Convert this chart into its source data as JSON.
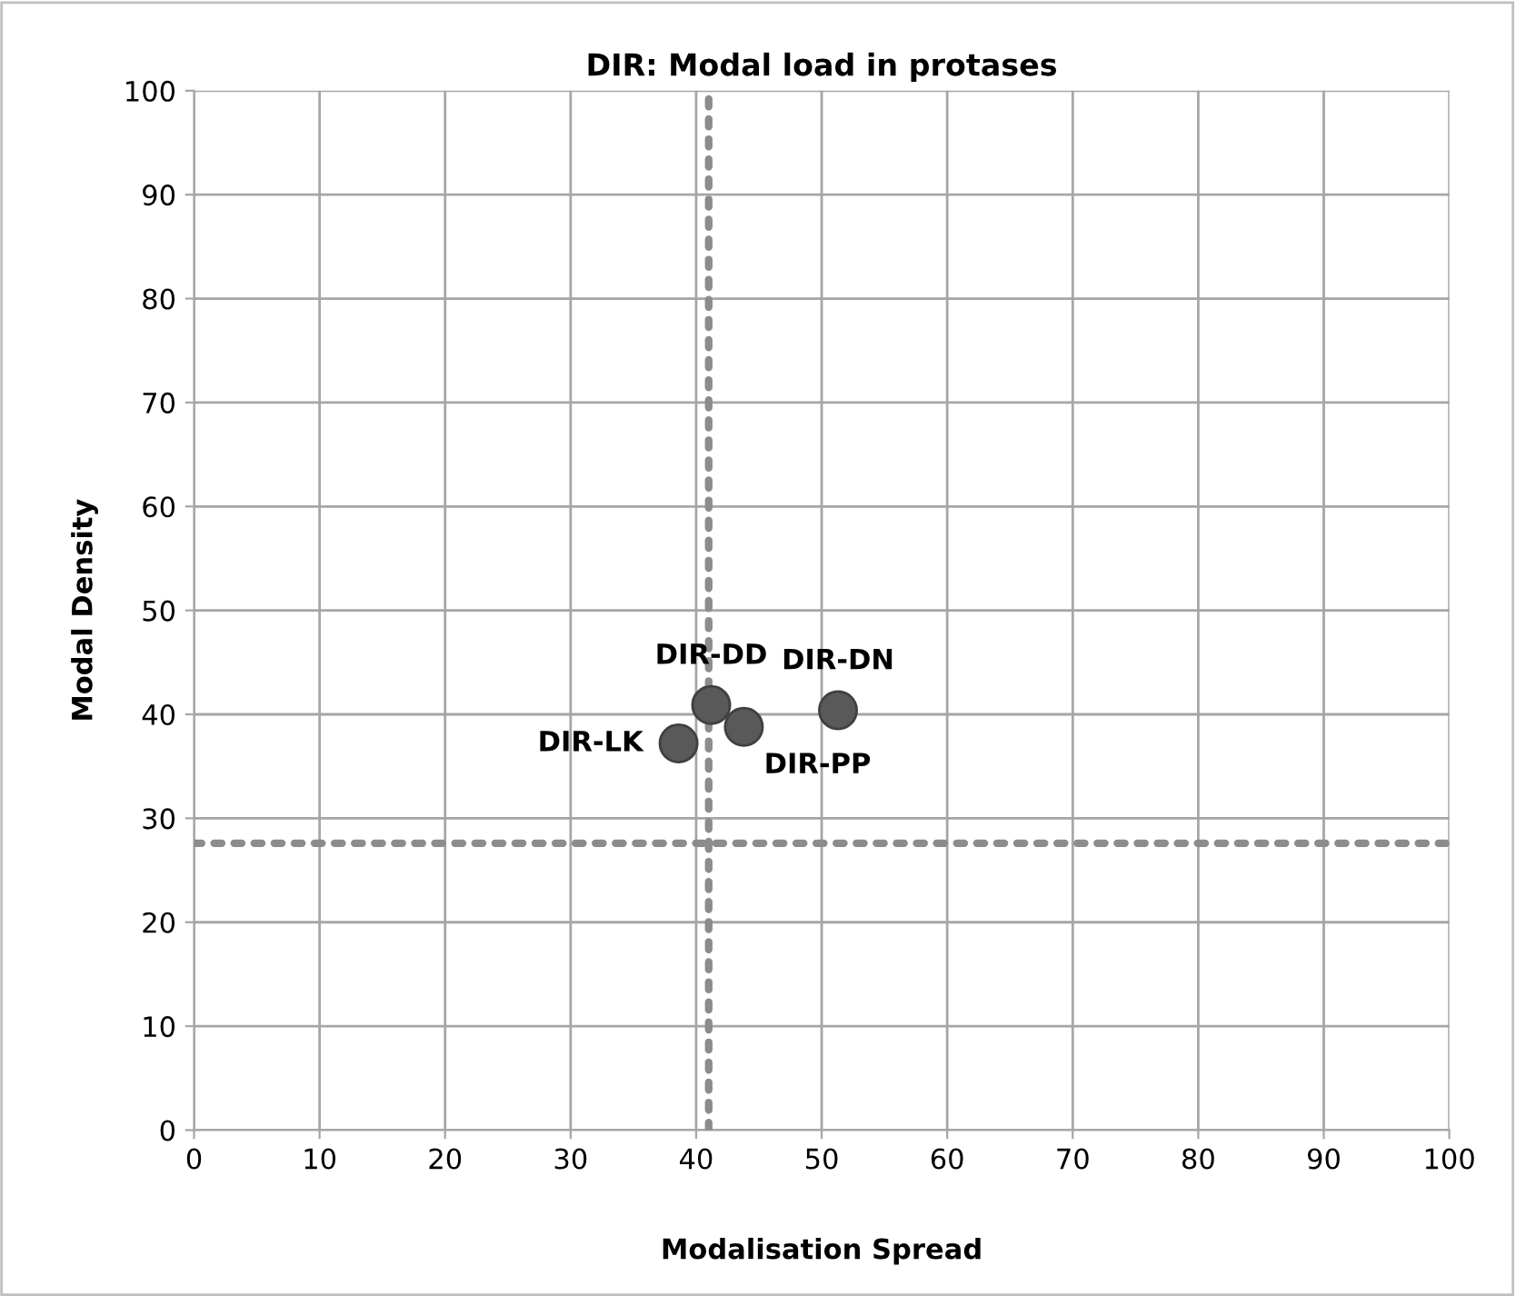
{
  "chart_data": {
    "type": "scatter",
    "title": "DIR: Modal load in protases",
    "xlabel": "Modalisation Spread",
    "ylabel": "Modal Density",
    "x": [
      41.2,
      51.3,
      38.6,
      43.8
    ],
    "series": [
      {
        "color": "#595959",
        "values": [
          40.9,
          40.4,
          37.2,
          38.8
        ]
      }
    ],
    "annotations": [
      {
        "text": "DIR-DD",
        "x": 41.2,
        "y": 40.9
      },
      {
        "text": "DIR-DN",
        "x": 51.3,
        "y": 40.4
      },
      {
        "text": "DIR-LK",
        "x": 38.6,
        "y": 37.2
      },
      {
        "text": "DIR-PP",
        "x": 43.8,
        "y": 38.8
      }
    ],
    "ref_lines": [
      {
        "axis": "x",
        "value": 41,
        "color": "#8c8c8c",
        "line_style": "dotted"
      },
      {
        "axis": "y",
        "value": 27.6,
        "color": "#8c8c8c",
        "line_style": "dotted"
      }
    ],
    "xlim": [
      0,
      100
    ],
    "ylim": [
      0,
      100
    ],
    "xticks": [
      0,
      10,
      20,
      30,
      40,
      50,
      60,
      70,
      80,
      90,
      100
    ],
    "yticks": [
      0,
      10,
      20,
      30,
      40,
      50,
      60,
      70,
      80,
      90,
      100
    ],
    "grid": true,
    "marker": "circle"
  }
}
